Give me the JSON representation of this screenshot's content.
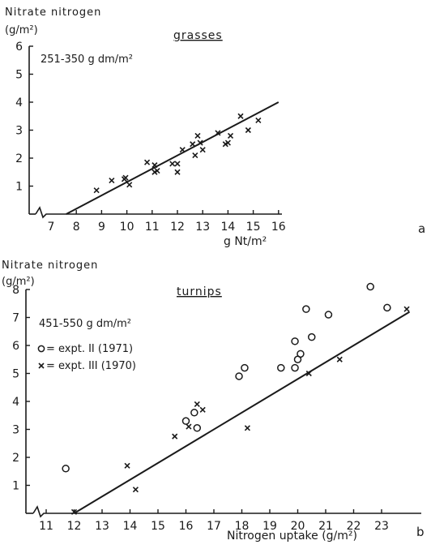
{
  "chart_data": [
    {
      "type": "scatter",
      "panel_letter": "a",
      "title": "grasses",
      "subtitle": "251-350 g dm/m²",
      "ylabel_line1": "Nitrate nitrogen",
      "ylabel_line2": "(g/m²)",
      "xlabel": "g Nt/m²",
      "xlim": [
        7,
        16
      ],
      "ylim": [
        0,
        6
      ],
      "x_ticks": [
        7,
        8,
        9,
        10,
        11,
        12,
        13,
        14,
        15,
        16
      ],
      "y_ticks": [
        1,
        2,
        3,
        4,
        5,
        6
      ],
      "axis_break": true,
      "fit_line": {
        "x": [
          7.6,
          16.0
        ],
        "y": [
          0.0,
          4.0
        ]
      },
      "series": [
        {
          "marker": "x",
          "points": [
            [
              8.8,
              0.85
            ],
            [
              9.4,
              1.2
            ],
            [
              9.9,
              1.25
            ],
            [
              9.95,
              1.3
            ],
            [
              10.1,
              1.05
            ],
            [
              10.8,
              1.85
            ],
            [
              11.1,
              1.5
            ],
            [
              11.1,
              1.75
            ],
            [
              11.2,
              1.55
            ],
            [
              11.8,
              1.8
            ],
            [
              12.0,
              1.5
            ],
            [
              12.0,
              1.8
            ],
            [
              12.2,
              2.3
            ],
            [
              12.6,
              2.5
            ],
            [
              12.7,
              2.1
            ],
            [
              12.8,
              2.8
            ],
            [
              12.9,
              2.55
            ],
            [
              13.0,
              2.3
            ],
            [
              13.6,
              2.9
            ],
            [
              13.9,
              2.5
            ],
            [
              14.0,
              2.55
            ],
            [
              14.1,
              2.8
            ],
            [
              14.5,
              3.5
            ],
            [
              14.8,
              3.0
            ],
            [
              15.2,
              3.35
            ]
          ]
        }
      ]
    },
    {
      "type": "scatter",
      "panel_letter": "b",
      "title": "turnips",
      "subtitle": "451-550 g dm/m²",
      "ylabel_line1": "Nitrate nitrogen",
      "ylabel_line2": "(g/m²)",
      "xlabel": "Nitrogen uptake (g/m²)",
      "xlim": [
        11,
        24
      ],
      "ylim": [
        0,
        8
      ],
      "x_ticks": [
        11,
        12,
        13,
        14,
        15,
        16,
        17,
        18,
        19,
        20,
        21,
        22,
        23
      ],
      "y_ticks": [
        1,
        2,
        3,
        4,
        5,
        6,
        7,
        8
      ],
      "axis_break": true,
      "fit_line": {
        "x": [
          12.0,
          24.0
        ],
        "y": [
          0.0,
          7.2
        ]
      },
      "legend": [
        {
          "symbol": "o",
          "label": "= expt. II (1971)"
        },
        {
          "symbol": "x",
          "label": "= expt. III (1970)"
        }
      ],
      "series": [
        {
          "marker": "o",
          "points": [
            [
              11.7,
              1.6
            ],
            [
              16.0,
              3.3
            ],
            [
              16.3,
              3.6
            ],
            [
              16.4,
              3.05
            ],
            [
              17.9,
              4.9
            ],
            [
              18.1,
              5.2
            ],
            [
              19.4,
              5.2
            ],
            [
              19.9,
              5.2
            ],
            [
              19.9,
              6.15
            ],
            [
              20.0,
              5.5
            ],
            [
              20.1,
              5.7
            ],
            [
              20.3,
              7.3
            ],
            [
              20.5,
              6.3
            ],
            [
              21.1,
              7.1
            ],
            [
              22.6,
              8.1
            ],
            [
              23.2,
              7.35
            ]
          ]
        },
        {
          "marker": "x",
          "points": [
            [
              12.0,
              0.05
            ],
            [
              13.9,
              1.7
            ],
            [
              14.2,
              0.85
            ],
            [
              15.6,
              2.75
            ],
            [
              16.1,
              3.1
            ],
            [
              16.4,
              3.9
            ],
            [
              16.6,
              3.7
            ],
            [
              18.2,
              3.05
            ],
            [
              20.4,
              5.0
            ],
            [
              21.5,
              5.5
            ],
            [
              23.9,
              7.3
            ]
          ]
        }
      ]
    }
  ]
}
